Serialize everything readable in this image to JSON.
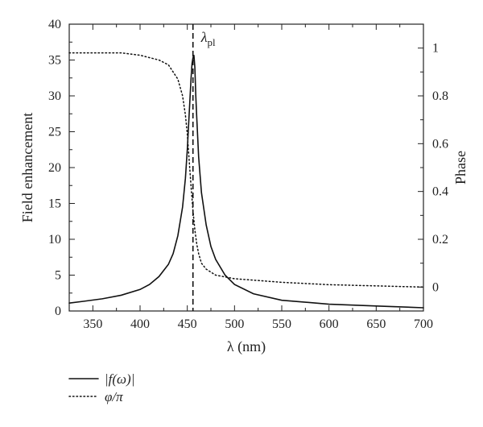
{
  "chart_data": {
    "type": "line",
    "xlabel": "λ (nm)",
    "ylabel_left": "Field enhancement",
    "ylabel_right": "Phase",
    "xlim": [
      325,
      700
    ],
    "ylim_left": [
      0,
      40
    ],
    "ylim_right": [
      -0.1,
      1.1
    ],
    "x_ticks": [
      350,
      400,
      450,
      500,
      550,
      600,
      650,
      700
    ],
    "y_left_ticks": [
      0,
      5,
      10,
      15,
      20,
      25,
      30,
      35,
      40
    ],
    "y_right_ticks": [
      0,
      0.2,
      0.4,
      0.6,
      0.8,
      1
    ],
    "annotation": {
      "symbol": "λ",
      "subscript": "pl",
      "x": 456
    },
    "series": [
      {
        "name": "|f(ω)|",
        "axis": "left",
        "style": "solid",
        "x": [
          325,
          340,
          360,
          380,
          400,
          410,
          420,
          430,
          435,
          440,
          445,
          448,
          450,
          452,
          454,
          455,
          456,
          457,
          458,
          459,
          460,
          462,
          465,
          470,
          475,
          480,
          490,
          500,
          520,
          550,
          600,
          650,
          700
        ],
        "y": [
          1.1,
          1.35,
          1.7,
          2.2,
          3.0,
          3.7,
          4.8,
          6.5,
          8.0,
          10.5,
          14.5,
          18.5,
          22.5,
          27.5,
          32.5,
          34.5,
          35.3,
          35.7,
          34.0,
          30.0,
          27.0,
          21.5,
          16.5,
          12.0,
          9.0,
          7.2,
          5.0,
          3.7,
          2.4,
          1.5,
          0.95,
          0.7,
          0.45
        ]
      },
      {
        "name": "φ/π",
        "axis": "right",
        "style": "dotted",
        "x": [
          325,
          350,
          380,
          400,
          420,
          430,
          440,
          445,
          448,
          450,
          452,
          454,
          456,
          458,
          460,
          462,
          465,
          470,
          480,
          500,
          550,
          600,
          650,
          700
        ],
        "y": [
          0.98,
          0.98,
          0.98,
          0.97,
          0.95,
          0.93,
          0.87,
          0.8,
          0.72,
          0.64,
          0.53,
          0.42,
          0.32,
          0.24,
          0.18,
          0.14,
          0.1,
          0.075,
          0.05,
          0.035,
          0.02,
          0.01,
          0.005,
          0.0
        ]
      }
    ],
    "legend": {
      "placement": "bottom-left",
      "entries": [
        {
          "label": "|f(ω)|",
          "style": "solid"
        },
        {
          "label": "φ/π",
          "style": "dotted"
        }
      ]
    }
  }
}
